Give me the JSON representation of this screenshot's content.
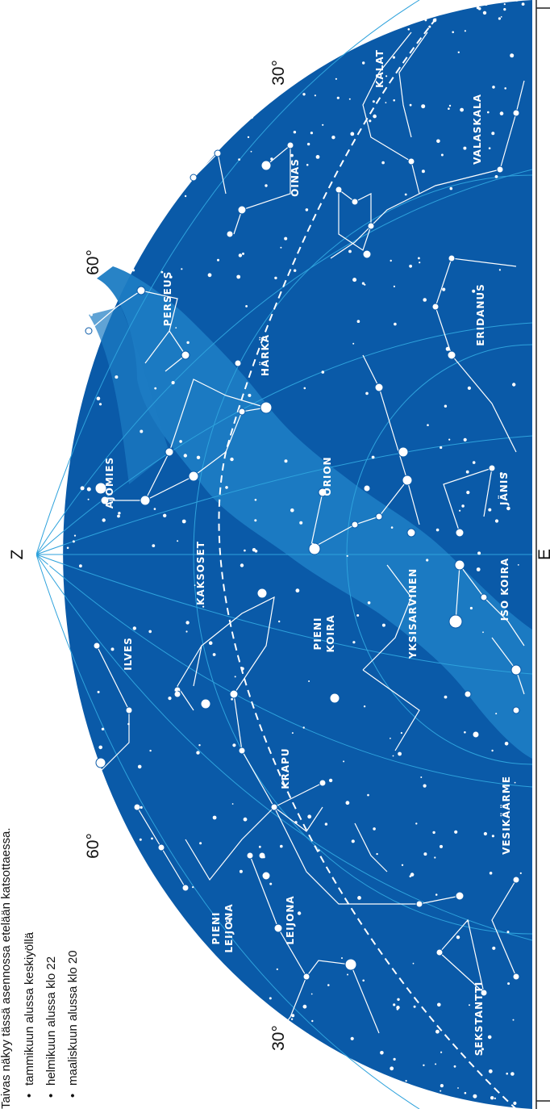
{
  "map": {
    "zenith_label": "Z",
    "south_label": "E",
    "altitude_labels": [
      "30°",
      "60°",
      "60°",
      "30°"
    ],
    "info": {
      "heading": "Taivas näkyy tässä asennossa etelään katsottaessa.",
      "bullets": [
        "tammikuun alussa keskiyöllä",
        "helmikuun alussa klo 22",
        "maaliskuun alussa klo 20"
      ]
    },
    "constellations": [
      {
        "id": "kalat",
        "lines": [
          "KALAT"
        ]
      },
      {
        "id": "valaskala",
        "lines": [
          "VALASKALA"
        ]
      },
      {
        "id": "oinas",
        "lines": [
          "OINAS"
        ]
      },
      {
        "id": "perseus",
        "lines": [
          "PERSEUS"
        ]
      },
      {
        "id": "harka",
        "lines": [
          "HÄRKÄ"
        ]
      },
      {
        "id": "eridanus",
        "lines": [
          "ERIDANUS"
        ]
      },
      {
        "id": "orion",
        "lines": [
          "ORION"
        ]
      },
      {
        "id": "janis",
        "lines": [
          "JÄNIS"
        ]
      },
      {
        "id": "ajomies",
        "lines": [
          "AJOMIES"
        ]
      },
      {
        "id": "kaksoset",
        "lines": [
          "KAKSOSET"
        ]
      },
      {
        "id": "iso-koira",
        "lines": [
          "ISO KOIRA"
        ]
      },
      {
        "id": "yksisarvinen",
        "lines": [
          "YKSISARVINEN"
        ]
      },
      {
        "id": "pieni-koira",
        "lines": [
          "PIENI",
          "KOIRA"
        ]
      },
      {
        "id": "ilves",
        "lines": [
          "ILVES"
        ]
      },
      {
        "id": "krapu",
        "lines": [
          "KRAPU"
        ]
      },
      {
        "id": "vesikaarme",
        "lines": [
          "VESIKÄÄRME"
        ]
      },
      {
        "id": "leijona",
        "lines": [
          "LEIJONA"
        ]
      },
      {
        "id": "pieni-leijona",
        "lines": [
          "PIENI",
          "LEIJONA"
        ]
      },
      {
        "id": "sekstantti",
        "lines": [
          "SEKSTANTTI"
        ]
      }
    ],
    "colors": {
      "sky": "#0a5aa8",
      "milky_way": "#1c7cc3",
      "grid": "#2ea2dc",
      "star": "#ffffff"
    }
  }
}
